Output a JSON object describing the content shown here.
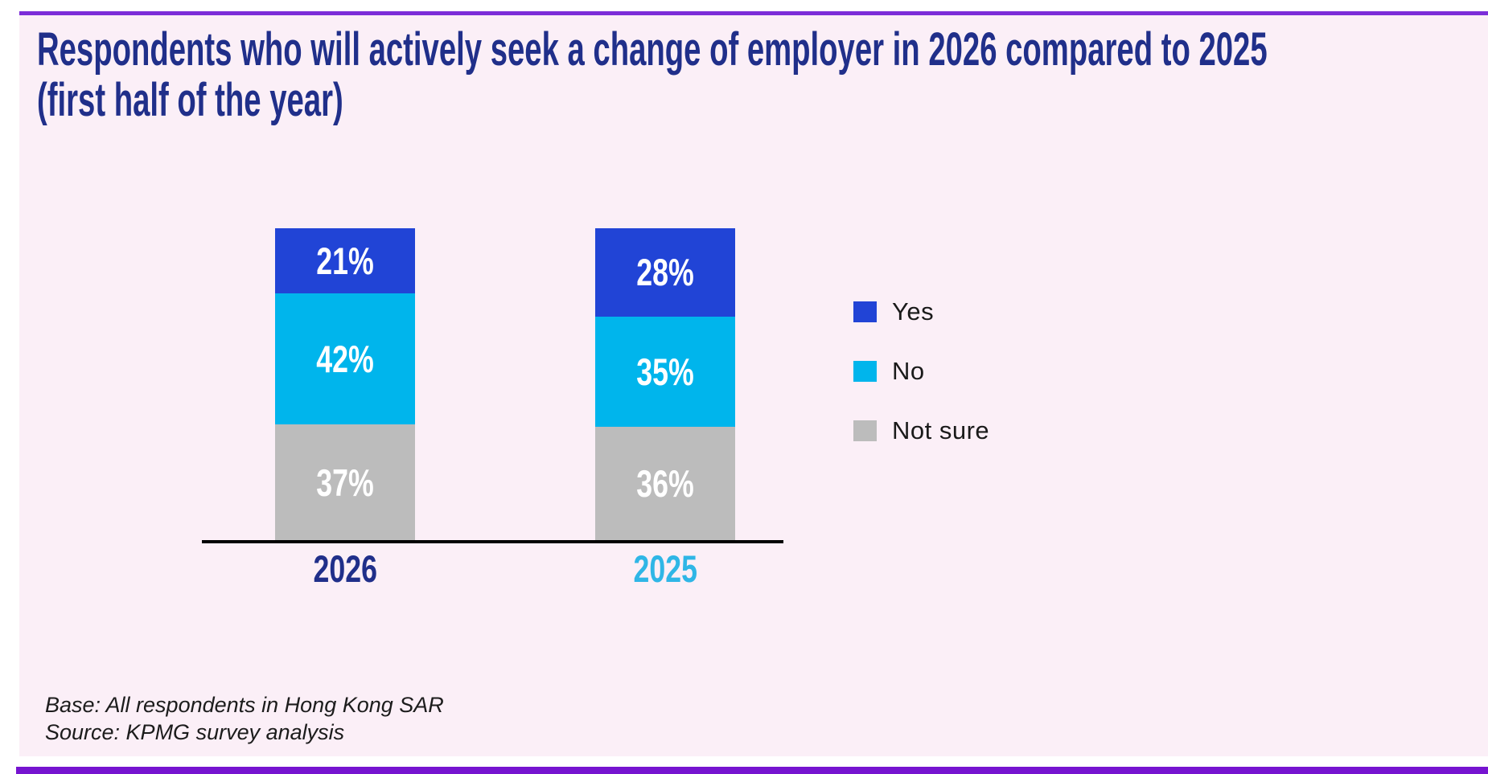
{
  "title": {
    "line1": "Respondents who will actively seek a change of employer in 2026 compared to 2025",
    "line2": "(first half of the year)"
  },
  "chart_data": {
    "type": "bar",
    "stacked": true,
    "orientation": "vertical",
    "categories": [
      "2026",
      "2025"
    ],
    "series": [
      {
        "name": "Yes",
        "color": "#2144D6",
        "values": [
          21,
          28
        ]
      },
      {
        "name": "No",
        "color": "#00B5EC",
        "values": [
          42,
          35
        ]
      },
      {
        "name": "Not sure",
        "color": "#BCBCBC",
        "values": [
          37,
          36
        ]
      }
    ],
    "value_suffix": "%",
    "value_label_color": "#FFFFFF",
    "legend_position": "right",
    "legend_items": [
      "Yes",
      "No",
      "Not sure"
    ],
    "category_label_colors": [
      "#202F8A",
      "#2FB6E6"
    ],
    "axis_style": "baseline only, no ticks, no gridlines, no y-axis"
  },
  "footnotes": {
    "base": "Base: All respondents in Hong Kong SAR",
    "source": "Source: KPMG survey analysis"
  },
  "colors": {
    "accent_top": "#7C2DD8",
    "accent_bottom": "#7614D0",
    "panel_bg": "#FBEFF7",
    "page_bg": "#FFFFFF",
    "title": "#202F8A",
    "axis": "#000000",
    "bar_value_text": "#FFFFFF",
    "legend_text": "#1A1A1A",
    "footnote_text": "#1C1C1C"
  }
}
